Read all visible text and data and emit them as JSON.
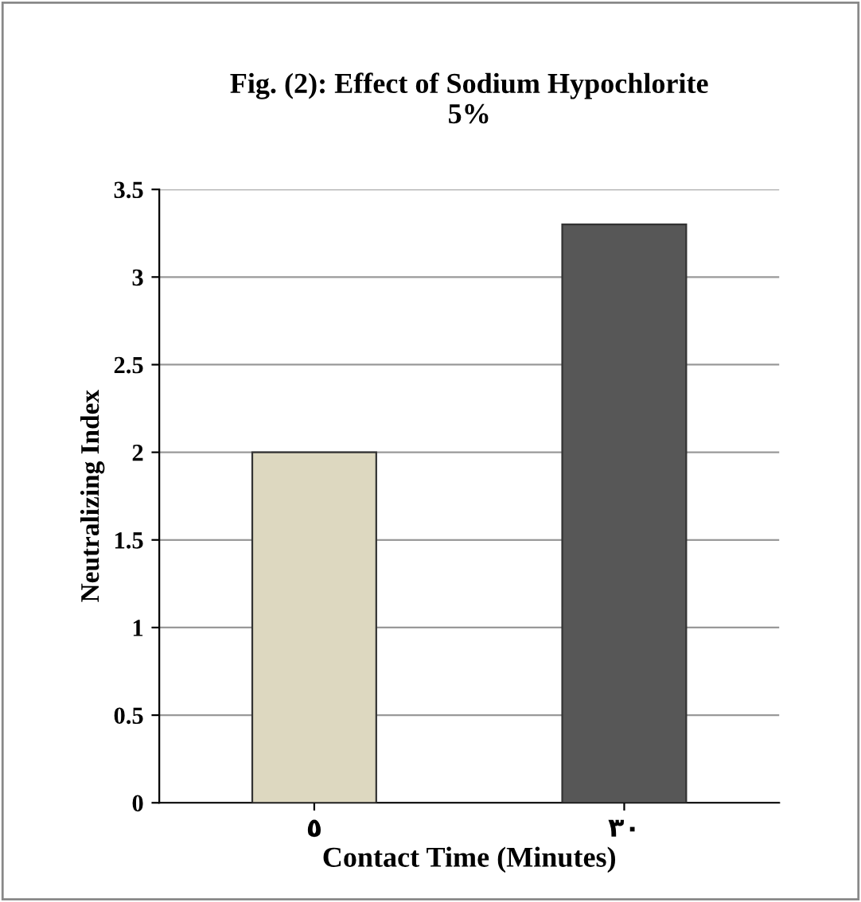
{
  "chart_data": {
    "type": "bar",
    "title": "Fig. (2): Effect of Sodium Hypochlorite\n5%",
    "xlabel": "Contact Time (Minutes)",
    "ylabel": "Neutralizing Index",
    "categories": [
      "٥",
      "٣٠"
    ],
    "values": [
      2,
      3.3
    ],
    "colors": [
      "#ddd8c0",
      "#575757"
    ],
    "ylim": [
      0,
      3.5
    ],
    "yticks": [
      0,
      0.5,
      1,
      1.5,
      2,
      2.5,
      3,
      3.5
    ],
    "grid": "y",
    "legend": false
  }
}
